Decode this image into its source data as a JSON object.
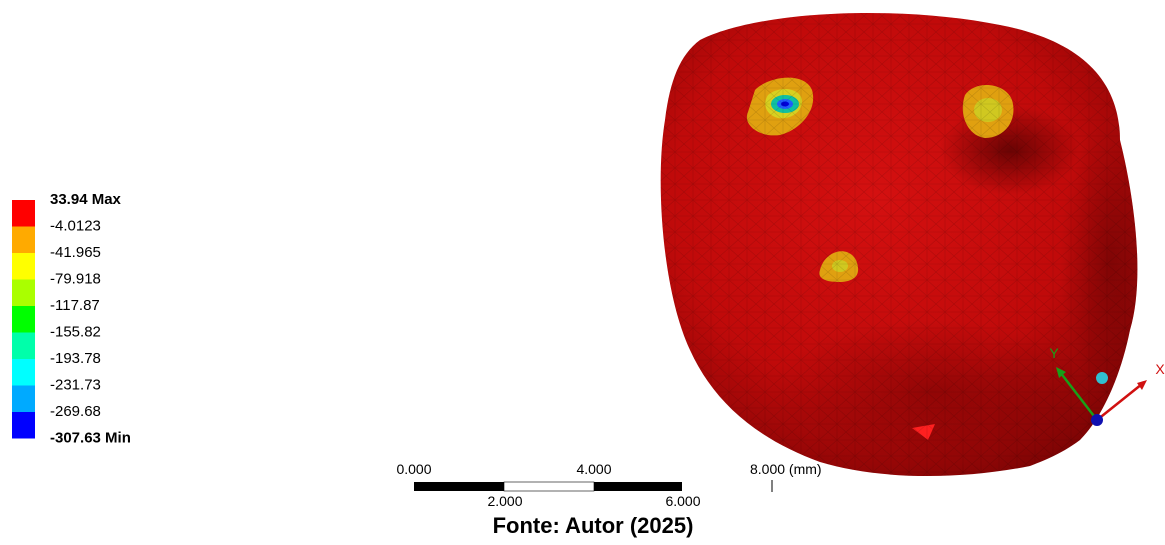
{
  "legend": {
    "labels": [
      "33.94 Max",
      "-4.0123",
      "-41.965",
      "-79.918",
      "-117.87",
      "-155.82",
      "-193.78",
      "-231.73",
      "-269.68",
      "-307.63 Min"
    ],
    "colors": [
      "#ff0000",
      "#ffaa00",
      "#ffff00",
      "#aaff00",
      "#00ff00",
      "#00ffaa",
      "#00ffff",
      "#00aaff",
      "#0000ff"
    ]
  },
  "scale_bar": {
    "top_labels": [
      "0.000",
      "4.000",
      "8.000 (mm)"
    ],
    "bottom_labels": [
      "2.000",
      "6.000"
    ]
  },
  "triad": {
    "x_label": "X",
    "y_label": "Y"
  },
  "caption": "Fonte: Autor (2025)"
}
